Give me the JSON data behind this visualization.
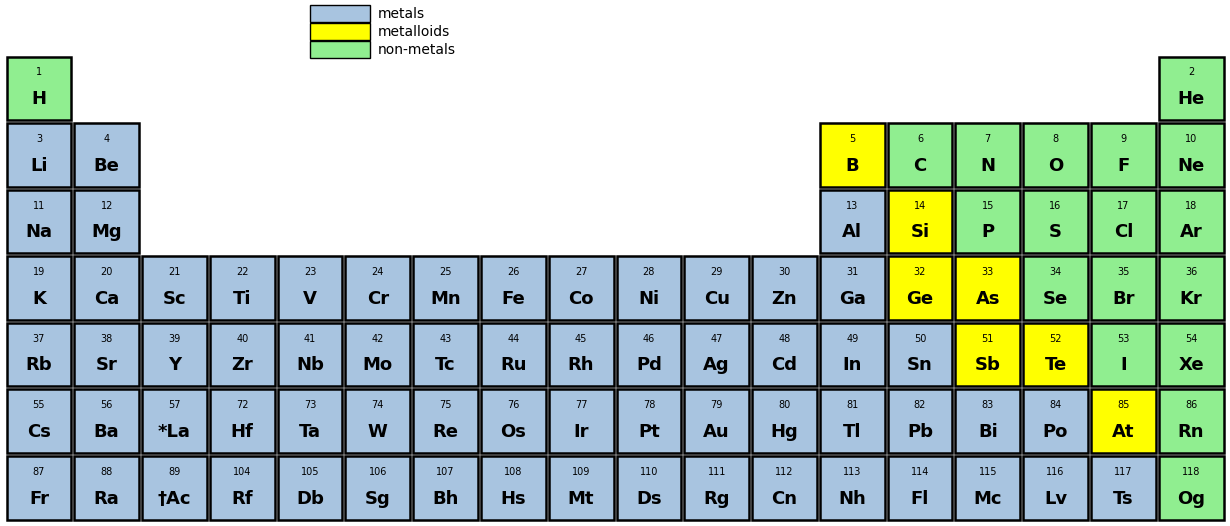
{
  "background_color": "#ffffff",
  "colors": {
    "metal": "#a8c4e0",
    "metalloid": "#ffff00",
    "nonmetal": "#90ee90",
    "empty": "#ffffff"
  },
  "legend": {
    "labels": [
      "metals",
      "metalloids",
      "non-metals"
    ]
  },
  "elements": [
    {
      "num": 1,
      "sym": "H",
      "row": 1,
      "col": 1,
      "type": "nonmetal"
    },
    {
      "num": 2,
      "sym": "He",
      "row": 1,
      "col": 18,
      "type": "nonmetal"
    },
    {
      "num": 3,
      "sym": "Li",
      "row": 2,
      "col": 1,
      "type": "metal"
    },
    {
      "num": 4,
      "sym": "Be",
      "row": 2,
      "col": 2,
      "type": "metal"
    },
    {
      "num": 5,
      "sym": "B",
      "row": 2,
      "col": 13,
      "type": "metalloid"
    },
    {
      "num": 6,
      "sym": "C",
      "row": 2,
      "col": 14,
      "type": "nonmetal"
    },
    {
      "num": 7,
      "sym": "N",
      "row": 2,
      "col": 15,
      "type": "nonmetal"
    },
    {
      "num": 8,
      "sym": "O",
      "row": 2,
      "col": 16,
      "type": "nonmetal"
    },
    {
      "num": 9,
      "sym": "F",
      "row": 2,
      "col": 17,
      "type": "nonmetal"
    },
    {
      "num": 10,
      "sym": "Ne",
      "row": 2,
      "col": 18,
      "type": "nonmetal"
    },
    {
      "num": 11,
      "sym": "Na",
      "row": 3,
      "col": 1,
      "type": "metal"
    },
    {
      "num": 12,
      "sym": "Mg",
      "row": 3,
      "col": 2,
      "type": "metal"
    },
    {
      "num": 13,
      "sym": "Al",
      "row": 3,
      "col": 13,
      "type": "metal"
    },
    {
      "num": 14,
      "sym": "Si",
      "row": 3,
      "col": 14,
      "type": "metalloid"
    },
    {
      "num": 15,
      "sym": "P",
      "row": 3,
      "col": 15,
      "type": "nonmetal"
    },
    {
      "num": 16,
      "sym": "S",
      "row": 3,
      "col": 16,
      "type": "nonmetal"
    },
    {
      "num": 17,
      "sym": "Cl",
      "row": 3,
      "col": 17,
      "type": "nonmetal"
    },
    {
      "num": 18,
      "sym": "Ar",
      "row": 3,
      "col": 18,
      "type": "nonmetal"
    },
    {
      "num": 19,
      "sym": "K",
      "row": 4,
      "col": 1,
      "type": "metal"
    },
    {
      "num": 20,
      "sym": "Ca",
      "row": 4,
      "col": 2,
      "type": "metal"
    },
    {
      "num": 21,
      "sym": "Sc",
      "row": 4,
      "col": 3,
      "type": "metal"
    },
    {
      "num": 22,
      "sym": "Ti",
      "row": 4,
      "col": 4,
      "type": "metal"
    },
    {
      "num": 23,
      "sym": "V",
      "row": 4,
      "col": 5,
      "type": "metal"
    },
    {
      "num": 24,
      "sym": "Cr",
      "row": 4,
      "col": 6,
      "type": "metal"
    },
    {
      "num": 25,
      "sym": "Mn",
      "row": 4,
      "col": 7,
      "type": "metal"
    },
    {
      "num": 26,
      "sym": "Fe",
      "row": 4,
      "col": 8,
      "type": "metal"
    },
    {
      "num": 27,
      "sym": "Co",
      "row": 4,
      "col": 9,
      "type": "metal"
    },
    {
      "num": 28,
      "sym": "Ni",
      "row": 4,
      "col": 10,
      "type": "metal"
    },
    {
      "num": 29,
      "sym": "Cu",
      "row": 4,
      "col": 11,
      "type": "metal"
    },
    {
      "num": 30,
      "sym": "Zn",
      "row": 4,
      "col": 12,
      "type": "metal"
    },
    {
      "num": 31,
      "sym": "Ga",
      "row": 4,
      "col": 13,
      "type": "metal"
    },
    {
      "num": 32,
      "sym": "Ge",
      "row": 4,
      "col": 14,
      "type": "metalloid"
    },
    {
      "num": 33,
      "sym": "As",
      "row": 4,
      "col": 15,
      "type": "metalloid"
    },
    {
      "num": 34,
      "sym": "Se",
      "row": 4,
      "col": 16,
      "type": "nonmetal"
    },
    {
      "num": 35,
      "sym": "Br",
      "row": 4,
      "col": 17,
      "type": "nonmetal"
    },
    {
      "num": 36,
      "sym": "Kr",
      "row": 4,
      "col": 18,
      "type": "nonmetal"
    },
    {
      "num": 37,
      "sym": "Rb",
      "row": 5,
      "col": 1,
      "type": "metal"
    },
    {
      "num": 38,
      "sym": "Sr",
      "row": 5,
      "col": 2,
      "type": "metal"
    },
    {
      "num": 39,
      "sym": "Y",
      "row": 5,
      "col": 3,
      "type": "metal"
    },
    {
      "num": 40,
      "sym": "Zr",
      "row": 5,
      "col": 4,
      "type": "metal"
    },
    {
      "num": 41,
      "sym": "Nb",
      "row": 5,
      "col": 5,
      "type": "metal"
    },
    {
      "num": 42,
      "sym": "Mo",
      "row": 5,
      "col": 6,
      "type": "metal"
    },
    {
      "num": 43,
      "sym": "Tc",
      "row": 5,
      "col": 7,
      "type": "metal"
    },
    {
      "num": 44,
      "sym": "Ru",
      "row": 5,
      "col": 8,
      "type": "metal"
    },
    {
      "num": 45,
      "sym": "Rh",
      "row": 5,
      "col": 9,
      "type": "metal"
    },
    {
      "num": 46,
      "sym": "Pd",
      "row": 5,
      "col": 10,
      "type": "metal"
    },
    {
      "num": 47,
      "sym": "Ag",
      "row": 5,
      "col": 11,
      "type": "metal"
    },
    {
      "num": 48,
      "sym": "Cd",
      "row": 5,
      "col": 12,
      "type": "metal"
    },
    {
      "num": 49,
      "sym": "In",
      "row": 5,
      "col": 13,
      "type": "metal"
    },
    {
      "num": 50,
      "sym": "Sn",
      "row": 5,
      "col": 14,
      "type": "metal"
    },
    {
      "num": 51,
      "sym": "Sb",
      "row": 5,
      "col": 15,
      "type": "metalloid"
    },
    {
      "num": 52,
      "sym": "Te",
      "row": 5,
      "col": 16,
      "type": "metalloid"
    },
    {
      "num": 53,
      "sym": "I",
      "row": 5,
      "col": 17,
      "type": "nonmetal"
    },
    {
      "num": 54,
      "sym": "Xe",
      "row": 5,
      "col": 18,
      "type": "nonmetal"
    },
    {
      "num": 55,
      "sym": "Cs",
      "row": 6,
      "col": 1,
      "type": "metal"
    },
    {
      "num": 56,
      "sym": "Ba",
      "row": 6,
      "col": 2,
      "type": "metal"
    },
    {
      "num": 57,
      "sym": "*La",
      "row": 6,
      "col": 3,
      "type": "metal"
    },
    {
      "num": 72,
      "sym": "Hf",
      "row": 6,
      "col": 4,
      "type": "metal"
    },
    {
      "num": 73,
      "sym": "Ta",
      "row": 6,
      "col": 5,
      "type": "metal"
    },
    {
      "num": 74,
      "sym": "W",
      "row": 6,
      "col": 6,
      "type": "metal"
    },
    {
      "num": 75,
      "sym": "Re",
      "row": 6,
      "col": 7,
      "type": "metal"
    },
    {
      "num": 76,
      "sym": "Os",
      "row": 6,
      "col": 8,
      "type": "metal"
    },
    {
      "num": 77,
      "sym": "Ir",
      "row": 6,
      "col": 9,
      "type": "metal"
    },
    {
      "num": 78,
      "sym": "Pt",
      "row": 6,
      "col": 10,
      "type": "metal"
    },
    {
      "num": 79,
      "sym": "Au",
      "row": 6,
      "col": 11,
      "type": "metal"
    },
    {
      "num": 80,
      "sym": "Hg",
      "row": 6,
      "col": 12,
      "type": "metal"
    },
    {
      "num": 81,
      "sym": "Tl",
      "row": 6,
      "col": 13,
      "type": "metal"
    },
    {
      "num": 82,
      "sym": "Pb",
      "row": 6,
      "col": 14,
      "type": "metal"
    },
    {
      "num": 83,
      "sym": "Bi",
      "row": 6,
      "col": 15,
      "type": "metal"
    },
    {
      "num": 84,
      "sym": "Po",
      "row": 6,
      "col": 16,
      "type": "metal"
    },
    {
      "num": 85,
      "sym": "At",
      "row": 6,
      "col": 17,
      "type": "metalloid"
    },
    {
      "num": 86,
      "sym": "Rn",
      "row": 6,
      "col": 18,
      "type": "nonmetal"
    },
    {
      "num": 87,
      "sym": "Fr",
      "row": 7,
      "col": 1,
      "type": "metal"
    },
    {
      "num": 88,
      "sym": "Ra",
      "row": 7,
      "col": 2,
      "type": "metal"
    },
    {
      "num": 89,
      "sym": "†Ac",
      "row": 7,
      "col": 3,
      "type": "metal"
    },
    {
      "num": 104,
      "sym": "Rf",
      "row": 7,
      "col": 4,
      "type": "metal"
    },
    {
      "num": 105,
      "sym": "Db",
      "row": 7,
      "col": 5,
      "type": "metal"
    },
    {
      "num": 106,
      "sym": "Sg",
      "row": 7,
      "col": 6,
      "type": "metal"
    },
    {
      "num": 107,
      "sym": "Bh",
      "row": 7,
      "col": 7,
      "type": "metal"
    },
    {
      "num": 108,
      "sym": "Hs",
      "row": 7,
      "col": 8,
      "type": "metal"
    },
    {
      "num": 109,
      "sym": "Mt",
      "row": 7,
      "col": 9,
      "type": "metal"
    },
    {
      "num": 110,
      "sym": "Ds",
      "row": 7,
      "col": 10,
      "type": "metal"
    },
    {
      "num": 111,
      "sym": "Rg",
      "row": 7,
      "col": 11,
      "type": "metal"
    },
    {
      "num": 112,
      "sym": "Cn",
      "row": 7,
      "col": 12,
      "type": "metal"
    },
    {
      "num": 113,
      "sym": "Nh",
      "row": 7,
      "col": 13,
      "type": "metal"
    },
    {
      "num": 114,
      "sym": "Fl",
      "row": 7,
      "col": 14,
      "type": "metal"
    },
    {
      "num": 115,
      "sym": "Mc",
      "row": 7,
      "col": 15,
      "type": "metal"
    },
    {
      "num": 116,
      "sym": "Lv",
      "row": 7,
      "col": 16,
      "type": "metal"
    },
    {
      "num": 117,
      "sym": "Ts",
      "row": 7,
      "col": 17,
      "type": "metal"
    },
    {
      "num": 118,
      "sym": "Og",
      "row": 7,
      "col": 18,
      "type": "nonmetal"
    }
  ]
}
